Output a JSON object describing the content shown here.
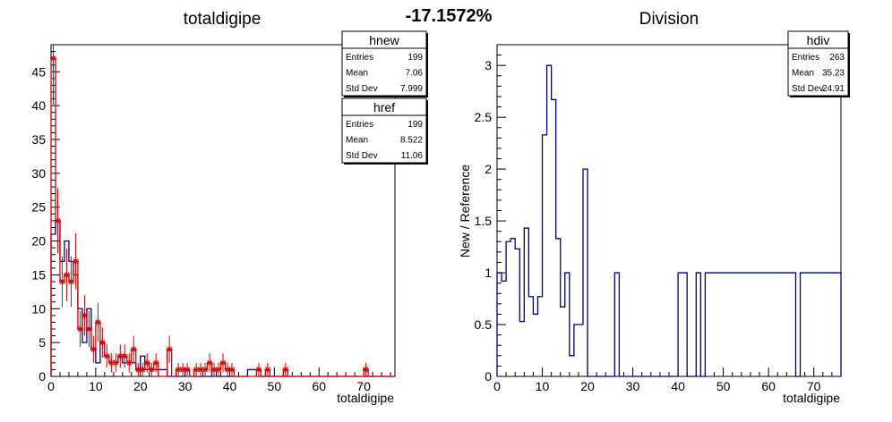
{
  "header": {
    "percent": "-17.1572%"
  },
  "chart_data": [
    {
      "type": "histogram",
      "title": "totaldigipe",
      "xlabel": "totaldigipe",
      "ylabel": "",
      "xlim": [
        0,
        77
      ],
      "ylim": [
        0,
        49
      ],
      "bin_width": 1,
      "x_ticks": [
        "0",
        "10",
        "20",
        "30",
        "40",
        "50",
        "60",
        "70"
      ],
      "y_ticks": [
        "0",
        "5",
        "10",
        "15",
        "20",
        "25",
        "30",
        "35",
        "40",
        "45"
      ],
      "series": [
        {
          "name": "hnew",
          "color": "#000080",
          "style": "step",
          "values": [
            21,
            23,
            17,
            20,
            17,
            15,
            10,
            5,
            10,
            4,
            2,
            5,
            3,
            2,
            2,
            3,
            2,
            2,
            2,
            1,
            3,
            1,
            1,
            1,
            1,
            1,
            0,
            0,
            0,
            0,
            1,
            0,
            0,
            0,
            0,
            0,
            1,
            0,
            0,
            0,
            0,
            0,
            0,
            0,
            1,
            1,
            1,
            0,
            0,
            0,
            0,
            0,
            0,
            0,
            0,
            0,
            0,
            0,
            0,
            0,
            0,
            0,
            0,
            0,
            0,
            0,
            0,
            0,
            0,
            0,
            0,
            0,
            0,
            0,
            0,
            0,
            0
          ]
        },
        {
          "name": "href",
          "color": "#e00000",
          "style": "step+marker",
          "values": [
            47,
            23,
            14,
            15,
            14,
            17,
            7,
            9,
            7,
            4,
            8,
            5,
            3,
            2,
            2,
            3,
            3,
            2,
            4,
            1,
            1,
            2,
            1,
            2,
            0,
            0,
            4,
            0,
            1,
            1,
            1,
            0,
            1,
            1,
            1,
            2,
            1,
            1,
            2,
            1,
            1,
            0,
            0,
            0,
            0,
            0,
            1,
            0,
            1,
            0,
            0,
            0,
            1,
            0,
            0,
            0,
            0,
            0,
            0,
            0,
            0,
            0,
            0,
            0,
            0,
            0,
            0,
            0,
            0,
            0,
            1,
            0,
            0,
            0,
            0,
            0,
            0
          ]
        }
      ],
      "stats": [
        {
          "name": "hnew",
          "rows": [
            {
              "label": "Entries",
              "value": "199"
            },
            {
              "label": "Mean",
              "value": "7.06"
            },
            {
              "label": "Std Dev",
              "value": "7.999"
            }
          ]
        },
        {
          "name": "href",
          "rows": [
            {
              "label": "Entries",
              "value": "199"
            },
            {
              "label": "Mean",
              "value": "8.522"
            },
            {
              "label": "Std Dev",
              "value": "11.06"
            }
          ]
        }
      ]
    },
    {
      "type": "histogram",
      "title": "Division",
      "xlabel": "totaldigipe",
      "ylabel": "New / Reference",
      "xlim": [
        0,
        76
      ],
      "ylim": [
        0,
        3.2
      ],
      "bin_width": 1,
      "x_ticks": [
        "0",
        "10",
        "20",
        "30",
        "40",
        "50",
        "60",
        "70"
      ],
      "y_ticks": [
        "0",
        "0.5",
        "1",
        "1.5",
        "2",
        "2.5",
        "3"
      ],
      "series": [
        {
          "name": "hdiv",
          "color": "#000080",
          "style": "step",
          "values": [
            1,
            0.92,
            1.3,
            1.33,
            1.23,
            0.53,
            1.43,
            0.77,
            0.6,
            0.77,
            2.33,
            3,
            2.67,
            1.33,
            0.67,
            1,
            0.2,
            0.5,
            0.5,
            2,
            0,
            0,
            0,
            0,
            0,
            0,
            1,
            0,
            0,
            0,
            0,
            0,
            0,
            0,
            0,
            0,
            0,
            0,
            0,
            0,
            1,
            1,
            0,
            0,
            1,
            0,
            1,
            1,
            1,
            1,
            1,
            1,
            1,
            1,
            1,
            1,
            1,
            1,
            1,
            1,
            1,
            1,
            1,
            1,
            1,
            1,
            0,
            1,
            1,
            1,
            1,
            1,
            1,
            1,
            1,
            1
          ]
        }
      ],
      "stats": [
        {
          "name": "hdiv",
          "rows": [
            {
              "label": "Entries",
              "value": "263"
            },
            {
              "label": "Mean",
              "value": "35.23"
            },
            {
              "label": "Std Dev",
              "value": "24.91"
            }
          ]
        }
      ]
    }
  ]
}
